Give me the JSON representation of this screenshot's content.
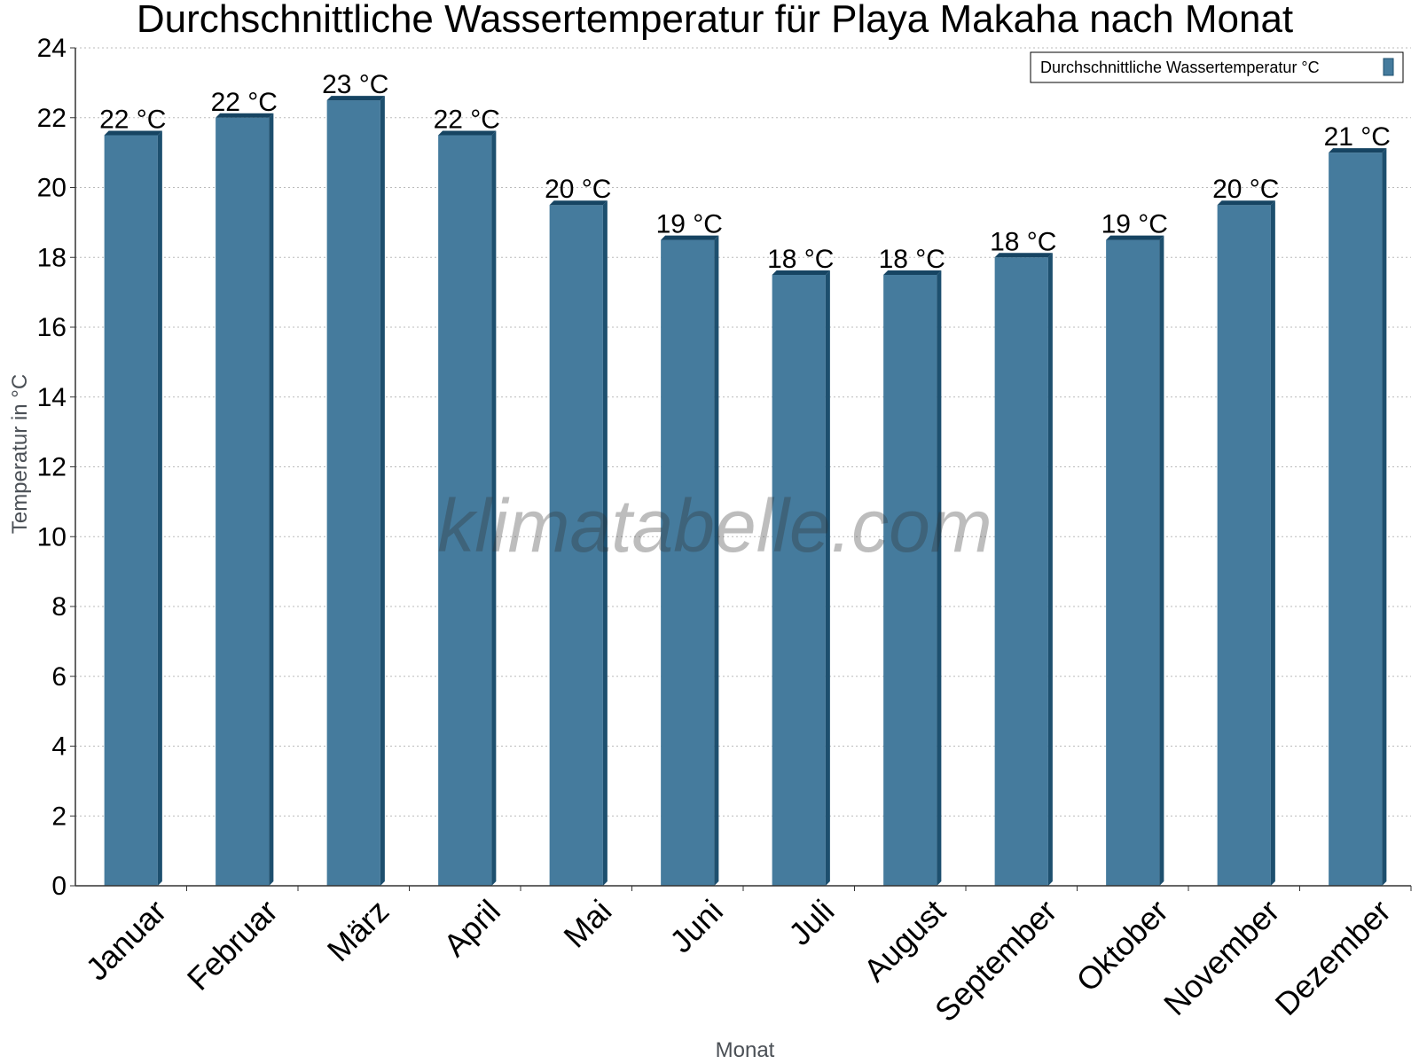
{
  "colors": {
    "bar_front": "#457b9d",
    "bar_side": "#1d4f6e",
    "bar_top": "#164462",
    "grid": "#bbbbbb",
    "axis": "#333333"
  },
  "watermark": "klimatabelle.com",
  "chart_data": {
    "type": "bar",
    "title": "Durchschnittliche Wassertemperatur für Playa Makaha nach Monat",
    "xlabel": "Monat",
    "ylabel": "Temperatur in °C",
    "ylim": [
      0,
      24
    ],
    "yticks": [
      "0",
      "2",
      "4",
      "6",
      "8",
      "10",
      "12",
      "14",
      "16",
      "18",
      "20",
      "22",
      "24"
    ],
    "grid": true,
    "legend_position": "top-right",
    "categories": [
      "Januar",
      "Februar",
      "März",
      "April",
      "Mai",
      "Juni",
      "Juli",
      "August",
      "September",
      "Oktober",
      "November",
      "Dezember"
    ],
    "series": [
      {
        "name": "Durchschnittliche Wassertemperatur °C",
        "values": [
          21.5,
          22,
          22.5,
          21.5,
          19.5,
          18.5,
          17.5,
          17.5,
          18,
          18.5,
          19.5,
          21
        ],
        "labels": [
          "22 °C",
          "22 °C",
          "23 °C",
          "22 °C",
          "20 °C",
          "19 °C",
          "18 °C",
          "18 °C",
          "18 °C",
          "19 °C",
          "20 °C",
          "21 °C"
        ]
      }
    ]
  }
}
